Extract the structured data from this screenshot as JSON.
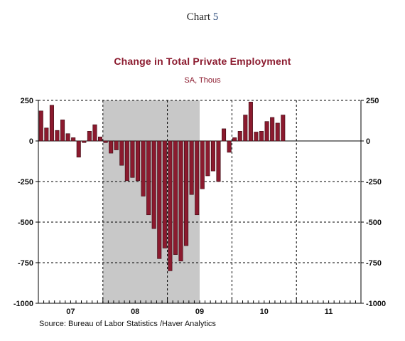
{
  "header": {
    "chart_prefix": "Chart",
    "chart_number": "5"
  },
  "chart_data": {
    "type": "bar",
    "title": "Change in Total Private Employment",
    "subtitle": "SA, Thous",
    "source": "Source:  Bureau of Labor Statistics /Haver Analytics",
    "x_tick_labels": [
      "07",
      "08",
      "09",
      "10",
      "11"
    ],
    "y_ticks": [
      250,
      0,
      -250,
      -500,
      -750,
      -1000
    ],
    "y_tick_labels_left": [
      "250",
      "0",
      "-250",
      "-500",
      "-750",
      "-1000"
    ],
    "y_tick_labels_right": [
      "250",
      "0",
      "-250",
      "-500",
      "-750",
      "-1000"
    ],
    "ylim": [
      -1000,
      250
    ],
    "x_start": "2007-01",
    "x_end": "2011-12",
    "recession_shading": {
      "start": "2008-01",
      "end": "2009-06"
    },
    "bar_color": "#8b1a2e",
    "recession_color": "#c8c8c8",
    "months": [
      "2007-01",
      "2007-02",
      "2007-03",
      "2007-04",
      "2007-05",
      "2007-06",
      "2007-07",
      "2007-08",
      "2007-09",
      "2007-10",
      "2007-11",
      "2007-12",
      "2008-01",
      "2008-02",
      "2008-03",
      "2008-04",
      "2008-05",
      "2008-06",
      "2008-07",
      "2008-08",
      "2008-09",
      "2008-10",
      "2008-11",
      "2008-12",
      "2009-01",
      "2009-02",
      "2009-03",
      "2009-04",
      "2009-05",
      "2009-06",
      "2009-07",
      "2009-08",
      "2009-09",
      "2009-10",
      "2009-11",
      "2009-12",
      "2010-01",
      "2010-02",
      "2010-03",
      "2010-04",
      "2010-05",
      "2010-06",
      "2010-07",
      "2010-08",
      "2010-09",
      "2010-10"
    ],
    "values": [
      185,
      80,
      220,
      65,
      130,
      45,
      20,
      -100,
      -10,
      60,
      100,
      25,
      -10,
      -75,
      -55,
      -150,
      -245,
      -225,
      -245,
      -340,
      -455,
      -540,
      -725,
      -660,
      -800,
      -700,
      -740,
      -645,
      -330,
      -455,
      -295,
      -215,
      -185,
      -250,
      75,
      -70,
      20,
      60,
      160,
      240,
      55,
      60,
      120,
      145,
      110,
      160
    ]
  }
}
